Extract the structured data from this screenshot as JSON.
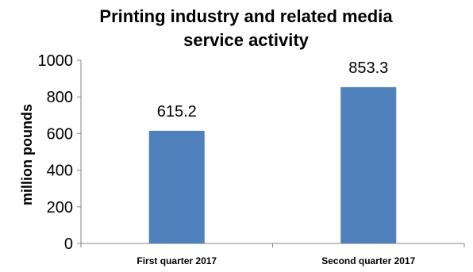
{
  "chart_data": {
    "type": "bar",
    "title": "Printing industry  and related media service activity",
    "title_lines": [
      "Printing industry  and related media",
      "service activity"
    ],
    "xlabel": "",
    "ylabel": "million pounds",
    "categories": [
      "First quarter 2017",
      "Second quarter 2017"
    ],
    "values": [
      615.2,
      853.3
    ],
    "data_labels": [
      "615.2",
      "853.3"
    ],
    "ylim": [
      0,
      1000
    ],
    "yticks": [
      "0",
      "200",
      "400",
      "600",
      "800",
      "1000"
    ],
    "grid": false,
    "bar_color": "#4F81BD"
  }
}
